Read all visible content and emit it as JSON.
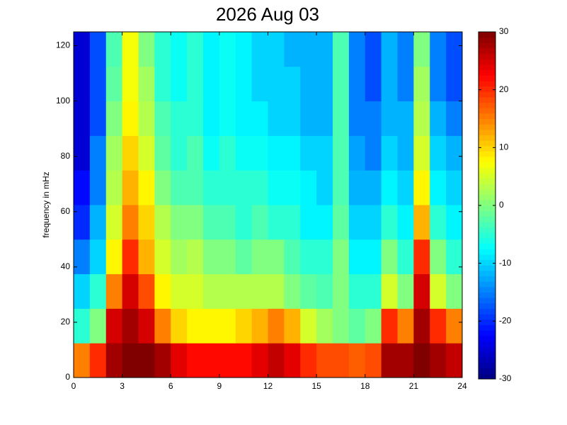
{
  "chart_data": {
    "type": "heatmap",
    "title": "2026 Aug 03",
    "y_label": "frequency in mHz",
    "colormap": "jet",
    "xlim": [
      0,
      24
    ],
    "xticks": [
      0,
      3,
      6,
      9,
      12,
      15,
      18,
      21,
      24
    ],
    "ylim": [
      0,
      125
    ],
    "yticks": [
      0,
      20,
      40,
      60,
      80,
      100,
      120
    ],
    "clim": [
      -30,
      30
    ],
    "cticks": [
      -30,
      -20,
      -10,
      0,
      10,
      20,
      30
    ],
    "values": [
      [
        15,
        20,
        28,
        30,
        30,
        28,
        24,
        22,
        22,
        22,
        22,
        24,
        26,
        24,
        20,
        18,
        18,
        17,
        18,
        28,
        28,
        30,
        28,
        26
      ],
      [
        -5,
        0,
        25,
        28,
        25,
        15,
        10,
        8,
        8,
        8,
        10,
        12,
        15,
        12,
        5,
        2,
        0,
        -2,
        0,
        20,
        15,
        28,
        20,
        15
      ],
      [
        -10,
        -5,
        15,
        25,
        18,
        8,
        5,
        5,
        3,
        3,
        3,
        3,
        3,
        0,
        -2,
        -3,
        0,
        -5,
        -5,
        5,
        0,
        25,
        5,
        0
      ],
      [
        -15,
        -10,
        8,
        20,
        12,
        5,
        2,
        3,
        0,
        0,
        -2,
        0,
        0,
        -3,
        -5,
        -5,
        0,
        -8,
        -8,
        0,
        -5,
        20,
        0,
        -5
      ],
      [
        -20,
        -12,
        5,
        15,
        10,
        3,
        0,
        0,
        -3,
        -3,
        -5,
        -3,
        -5,
        -5,
        -8,
        -8,
        -2,
        -10,
        -10,
        -5,
        -8,
        12,
        -5,
        -8
      ],
      [
        -22,
        -15,
        3,
        12,
        8,
        0,
        -3,
        -3,
        -5,
        -5,
        -5,
        -5,
        -7,
        -7,
        -8,
        -10,
        -3,
        -12,
        -12,
        -8,
        -10,
        8,
        -8,
        -10
      ],
      [
        -25,
        -15,
        2,
        10,
        5,
        -2,
        -5,
        -3,
        -7,
        -5,
        -7,
        -7,
        -8,
        -8,
        -10,
        -10,
        -3,
        -13,
        -15,
        -10,
        -12,
        5,
        -10,
        -12
      ],
      [
        -25,
        -18,
        0,
        8,
        3,
        -3,
        -5,
        -5,
        -8,
        -7,
        -8,
        -8,
        -10,
        -10,
        -12,
        -12,
        -3,
        -15,
        -15,
        -12,
        -12,
        3,
        -12,
        -15
      ],
      [
        -25,
        -18,
        -2,
        7,
        2,
        -5,
        -7,
        -5,
        -8,
        -7,
        -8,
        -10,
        -10,
        -10,
        -12,
        -12,
        -3,
        -15,
        -18,
        -12,
        -15,
        2,
        -15,
        -18
      ],
      [
        -25,
        -18,
        -3,
        7,
        0,
        -5,
        -7,
        -5,
        -8,
        -7,
        -8,
        -10,
        -10,
        -12,
        -12,
        -12,
        -3,
        -15,
        -18,
        -12,
        -15,
        0,
        -15,
        -18
      ]
    ]
  }
}
